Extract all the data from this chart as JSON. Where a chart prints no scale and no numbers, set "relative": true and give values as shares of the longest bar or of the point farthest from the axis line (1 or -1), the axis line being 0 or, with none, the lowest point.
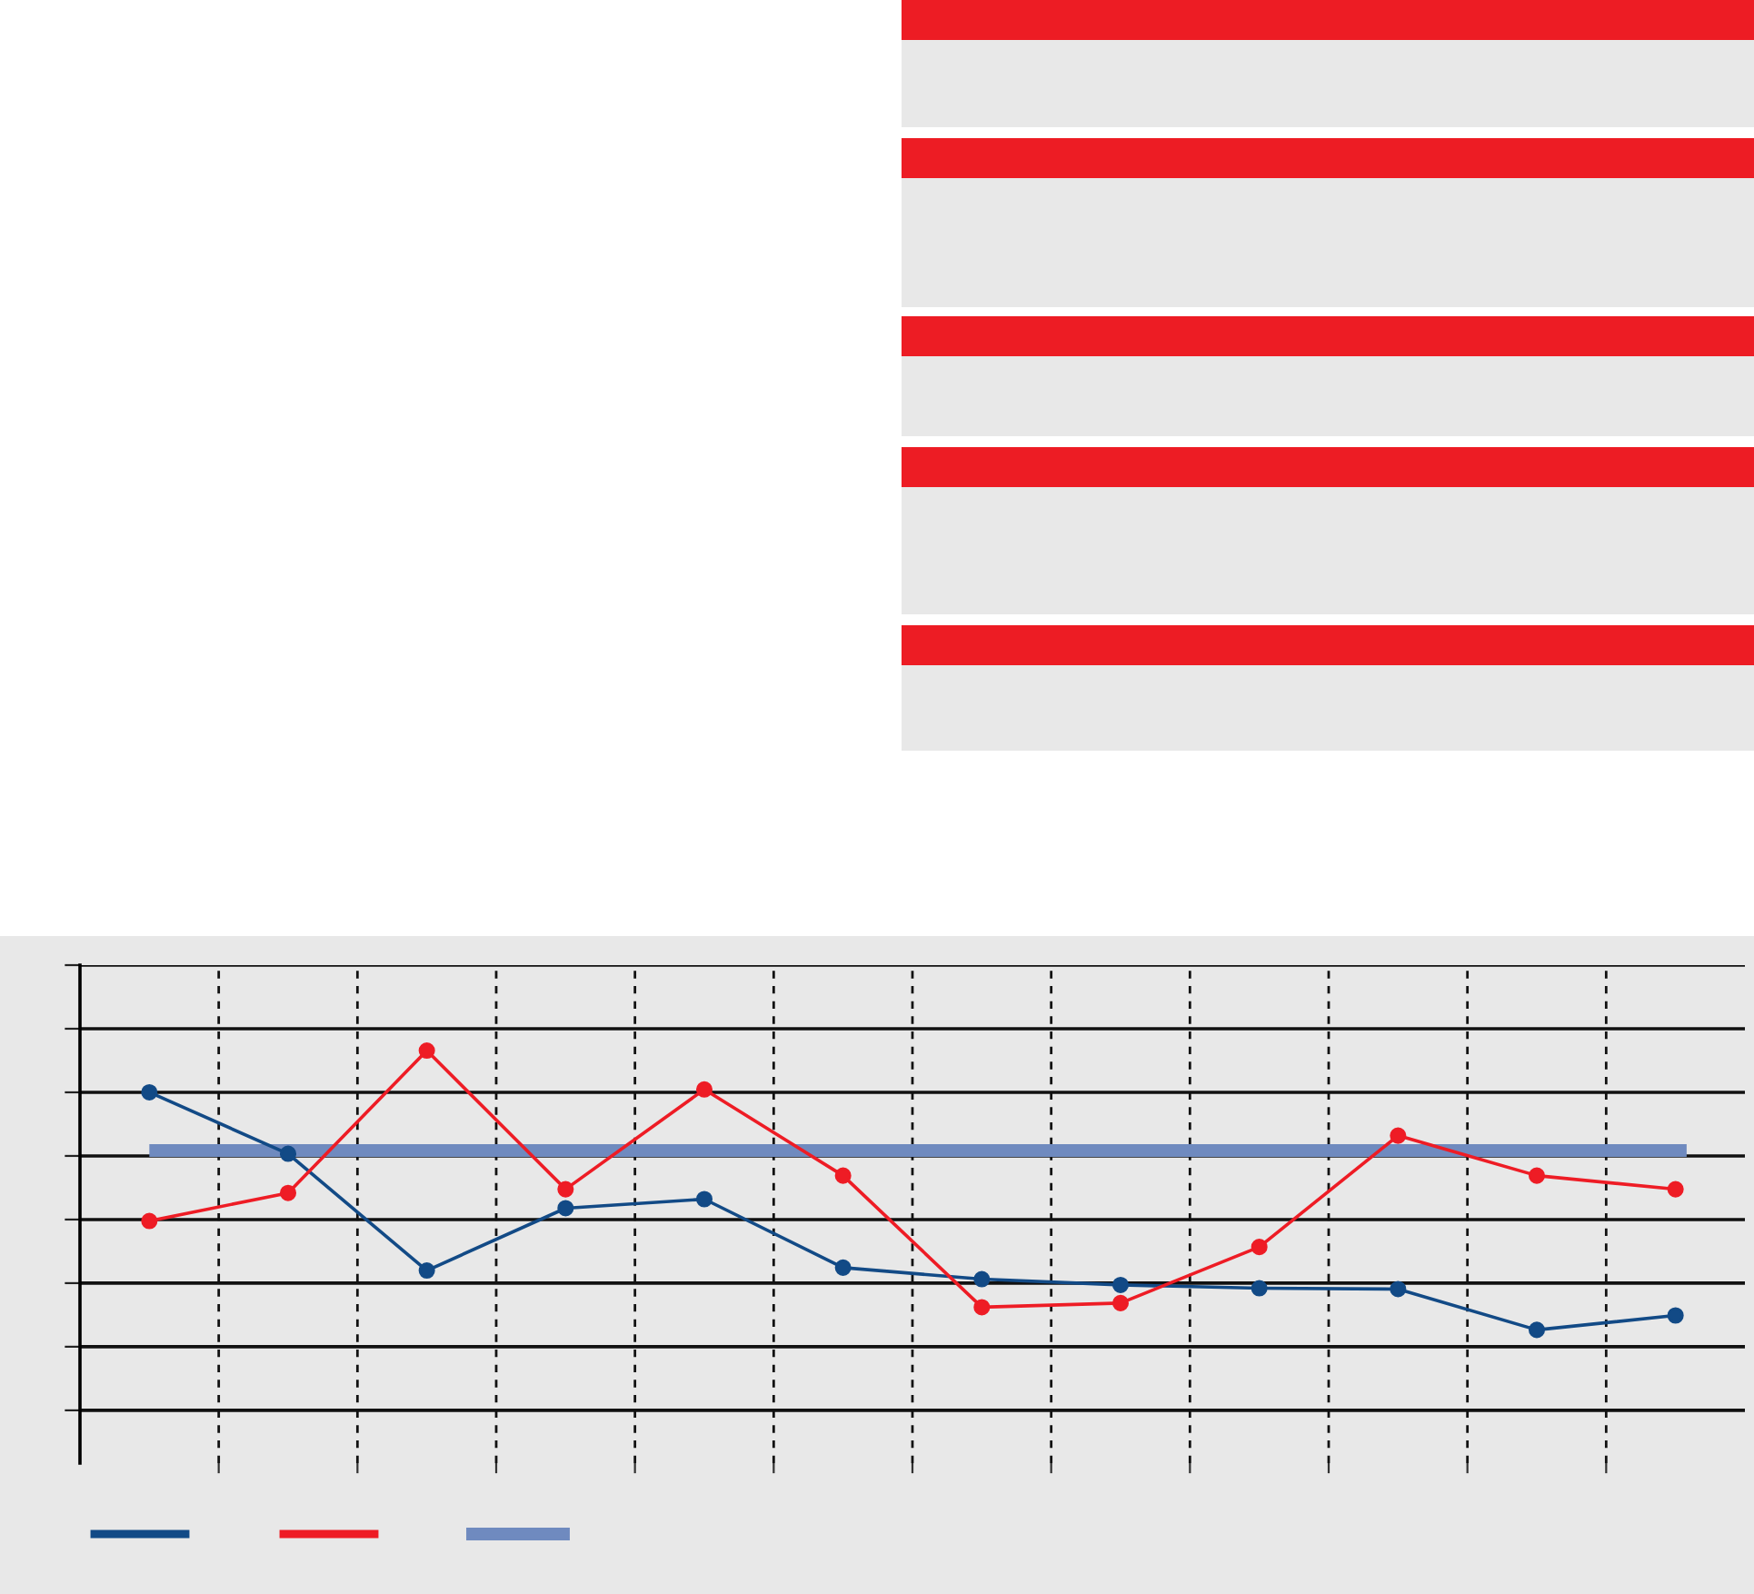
{
  "chart_data": {
    "type": "line",
    "relative": true,
    "categories": [
      null,
      null,
      null,
      null,
      null,
      null,
      null,
      null,
      null,
      null,
      null,
      null
    ],
    "series": [
      {
        "color": "#124a86",
        "values": [
          0.899,
          0.75,
          0.467,
          0.618,
          0.64,
          0.474,
          0.446,
          0.432,
          0.424,
          0.422,
          0.323,
          0.358
        ]
      },
      {
        "color": "#ee1c25",
        "values": [
          0.587,
          0.655,
          1.0,
          0.664,
          0.906,
          0.697,
          0.378,
          0.388,
          0.524,
          0.794,
          0.697,
          0.664
        ]
      }
    ],
    "ref_lines": [
      {
        "axis": "y",
        "value": 0.758,
        "color": "#6f8abf"
      }
    ],
    "marker": "circle",
    "line_style": "solid",
    "grid": true,
    "tick_labels": false
  }
}
